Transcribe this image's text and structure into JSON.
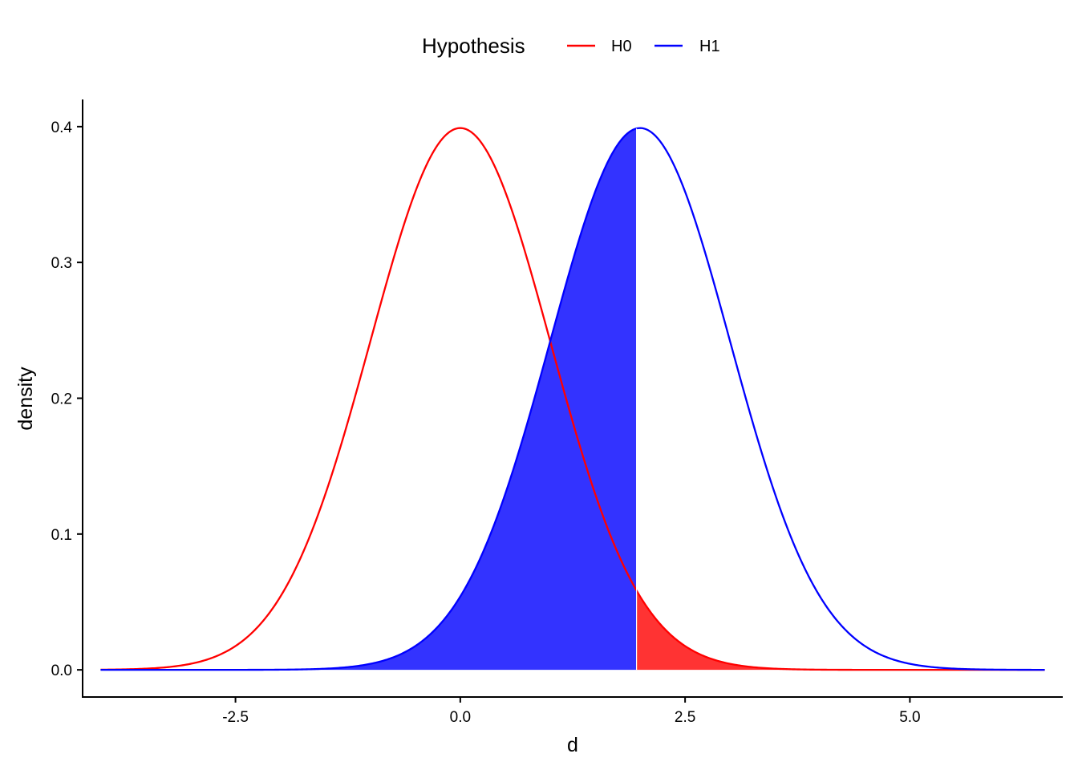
{
  "chart_data": {
    "type": "area",
    "xlabel": "d",
    "ylabel": "density",
    "xlim": [
      -4.2,
      6.7
    ],
    "ylim": [
      -0.02,
      0.42
    ],
    "x_ticks": [
      -2.5,
      0.0,
      2.5,
      5.0
    ],
    "x_tick_labels": [
      "-2.5",
      "0.0",
      "2.5",
      "5.0"
    ],
    "y_ticks": [
      0.0,
      0.1,
      0.2,
      0.3,
      0.4
    ],
    "y_tick_labels": [
      "0.0",
      "0.1",
      "0.2",
      "0.3",
      "0.4"
    ],
    "x_range": [
      -4,
      6.5
    ],
    "critical_value": 1.96,
    "grid": false,
    "legend": {
      "title": "Hypothesis",
      "placement": "top"
    },
    "series": [
      {
        "name": "H0",
        "distribution": "normal",
        "mean": 0,
        "sd": 1,
        "color": "#ff0000",
        "shaded_region": "d > 1.96"
      },
      {
        "name": "H1",
        "distribution": "normal",
        "mean": 2,
        "sd": 1,
        "color": "#0000ff",
        "shaded_region": "d < 1.96"
      }
    ]
  }
}
